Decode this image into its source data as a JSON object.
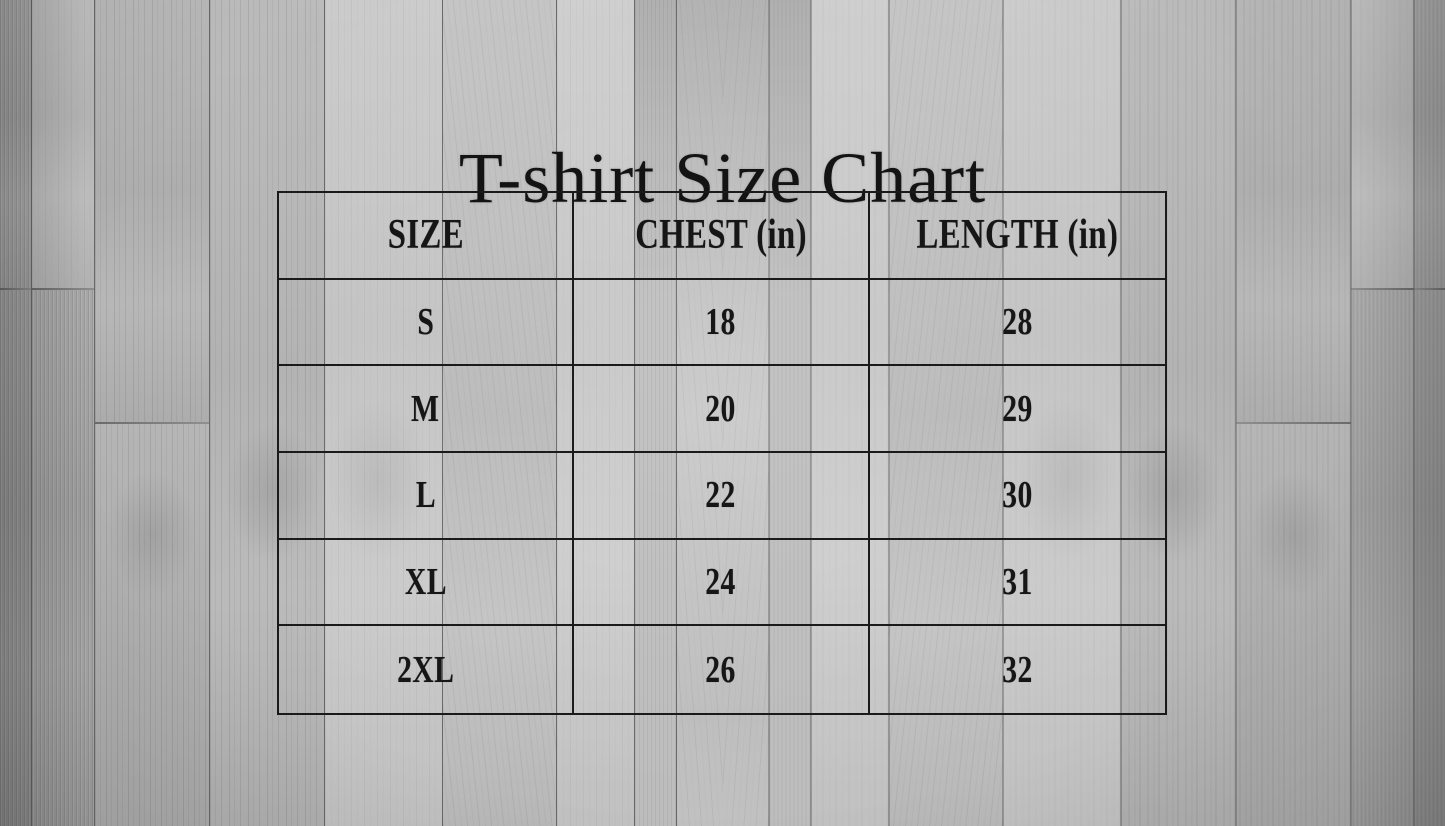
{
  "title": "T-shirt Size Chart",
  "table": {
    "columns": [
      "SIZE",
      "CHEST (in)",
      "LENGTH (in)"
    ],
    "rows": [
      {
        "size": "S",
        "chest": "18",
        "length": "28"
      },
      {
        "size": "M",
        "chest": "20",
        "length": "29"
      },
      {
        "size": "L",
        "chest": "22",
        "length": "30"
      },
      {
        "size": "XL",
        "chest": "24",
        "length": "31"
      },
      {
        "size": "2XL",
        "chest": "26",
        "length": "32"
      }
    ]
  },
  "colors": {
    "table-line": "#1a1a1a",
    "text-color": "#161616",
    "wood-base": "#c2c2c2"
  }
}
